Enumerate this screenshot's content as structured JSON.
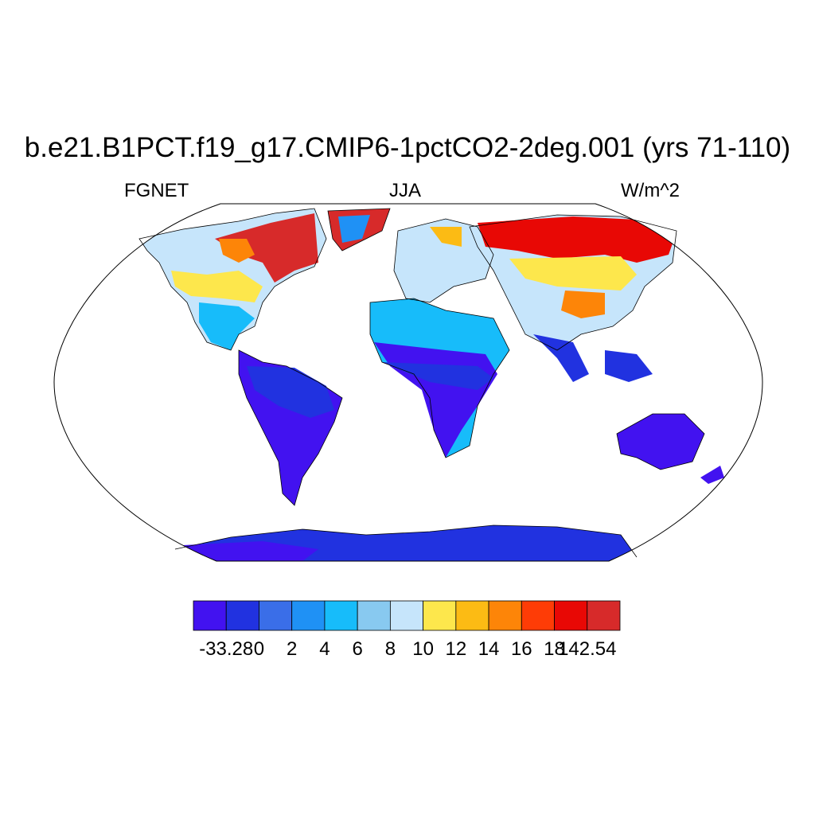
{
  "title": "b.e21.B1PCT.f19_g17.CMIP6-1pctCO2-2deg.001 (yrs 71-110)",
  "subtitle_left": "FGNET",
  "subtitle_center": "JJA",
  "subtitle_right": "W/m^2",
  "colorbar": {
    "colors": [
      "#4212f0",
      "#2132e0",
      "#3a6ee8",
      "#1f91f5",
      "#17bcfa",
      "#88c9f0",
      "#c6e5fb",
      "#fde74c",
      "#fcbb14",
      "#fd8508",
      "#fe3c06",
      "#e80805",
      "#d72a2a"
    ],
    "labels": [
      "-33.28",
      "0",
      "2",
      "4",
      "6",
      "8",
      "10",
      "12",
      "14",
      "16",
      "18",
      "142.54"
    ]
  },
  "map": {
    "projection": "robinson",
    "ocean_color": "#ffffff",
    "coastline_color": "#000000"
  }
}
